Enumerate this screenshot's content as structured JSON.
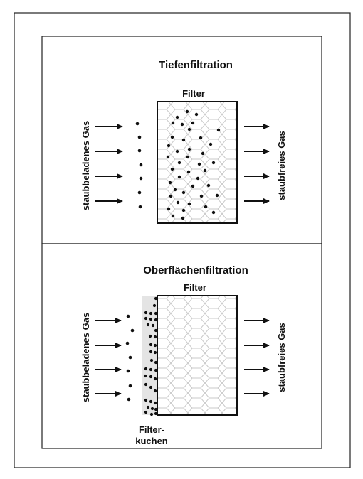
{
  "panels": [
    {
      "id": "depth",
      "title": "Tiefenfiltration",
      "filter_label": "Filter",
      "inlet_label": "staubbeladenes Gas",
      "outlet_label": "staubfreies Gas"
    },
    {
      "id": "surface",
      "title": "Oberflächenfiltration",
      "filter_label": "Filter",
      "inlet_label": "staubbeladenes Gas",
      "outlet_label": "staubfreies Gas",
      "cake_label_line1": "Filter-",
      "cake_label_line2": "kuchen"
    }
  ]
}
